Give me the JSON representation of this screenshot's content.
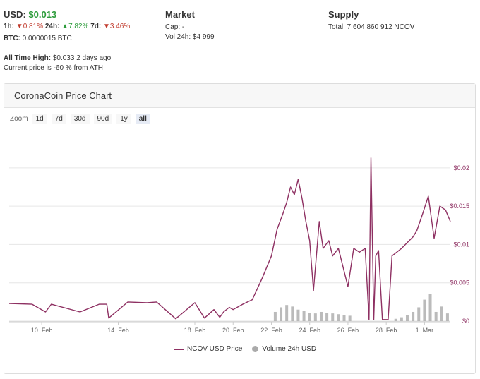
{
  "stats": {
    "usd_label": "USD:",
    "usd_price": "$0.013",
    "h1_label": "1h:",
    "h1_arrow": "▼",
    "h1_value": "0.81%",
    "h24_label": "24h:",
    "h24_arrow": "▲",
    "h24_value": "7.82%",
    "d7_label": "7d:",
    "d7_arrow": "▼",
    "d7_value": "3.46%",
    "btc_label": "BTC:",
    "btc_value": "0.0000015 BTC",
    "ath_label": "All Time High:",
    "ath_value": "$0.033",
    "ath_when": "2 days ago",
    "ath_note": "Current price is -60 % from ATH"
  },
  "market": {
    "title": "Market",
    "cap": "Cap: -",
    "vol": "Vol 24h: $4 999"
  },
  "supply": {
    "title": "Supply",
    "total": "Total: 7 604 860 912 NCOV"
  },
  "panel": {
    "title": "CoronaCoin Price Chart",
    "zoom_label": "Zoom",
    "zoom_options": [
      "1d",
      "7d",
      "30d",
      "90d",
      "1y",
      "all"
    ],
    "zoom_selected": "all"
  },
  "colors": {
    "price_line": "#8e3062",
    "volume_bars": "#aaaaaa",
    "price_up": "#2e9c3c",
    "price_down": "#c0392b"
  },
  "chart_data": {
    "type": "line",
    "title": "",
    "x_labels": [
      "10. Feb",
      "14. Feb",
      "18. Feb",
      "20. Feb",
      "22. Feb",
      "24. Feb",
      "26. Feb",
      "28. Feb",
      "1. Mar"
    ],
    "x_label_days": [
      1,
      5,
      9,
      11,
      13,
      15,
      17,
      19,
      21
    ],
    "y_labels": [
      "$0",
      "$0.005",
      "$0.01",
      "$0.015",
      "$0.02"
    ],
    "y_ticks": [
      0,
      0.005,
      0.01,
      0.015,
      0.02
    ],
    "ylim": [
      0,
      0.0245
    ],
    "xlim": [
      -0.7,
      22.35
    ],
    "grid": true,
    "legend_position": "bottom",
    "series": [
      {
        "name": "NCOV USD Price",
        "type": "line",
        "x": [
          -0.7,
          0.5,
          1.2,
          1.5,
          3.0,
          4.0,
          4.4,
          4.5,
          5.5,
          6.5,
          7.0,
          8.0,
          9.0,
          9.5,
          10.0,
          10.3,
          10.5,
          10.8,
          11.0,
          11.5,
          12.0,
          12.5,
          13.0,
          13.3,
          13.6,
          13.8,
          14.0,
          14.2,
          14.4,
          14.6,
          14.8,
          15.0,
          15.2,
          15.5,
          15.7,
          16.0,
          16.2,
          16.5,
          17.0,
          17.3,
          17.6,
          17.9,
          18.1,
          18.2,
          18.35,
          18.45,
          18.6,
          18.8,
          18.95,
          19.1,
          19.3,
          19.8,
          20.2,
          20.4,
          20.6,
          20.9,
          21.2,
          21.5,
          21.8,
          22.1,
          22.35
        ],
        "y": [
          0.0023,
          0.0022,
          0.0012,
          0.0022,
          0.0012,
          0.0022,
          0.0022,
          0.0004,
          0.0025,
          0.0024,
          0.0025,
          0.0003,
          0.0024,
          0.0004,
          0.0015,
          0.0005,
          0.0012,
          0.0018,
          0.0015,
          0.0022,
          0.0028,
          0.0055,
          0.0085,
          0.012,
          0.014,
          0.0155,
          0.0175,
          0.0165,
          0.0185,
          0.016,
          0.013,
          0.0105,
          0.004,
          0.013,
          0.0095,
          0.0105,
          0.0085,
          0.0095,
          0.0045,
          0.0095,
          0.009,
          0.0095,
          0.0002,
          0.0213,
          0.0002,
          0.0085,
          0.0092,
          0.0002,
          0.0002,
          0.0002,
          0.0085,
          0.0095,
          0.0105,
          0.011,
          0.0118,
          0.014,
          0.0163,
          0.0108,
          0.015,
          0.0145,
          0.013
        ]
      },
      {
        "name": "Volume 24h USD",
        "type": "column",
        "x": [
          13.2,
          13.5,
          13.8,
          14.1,
          14.4,
          14.7,
          15.0,
          15.3,
          15.6,
          15.9,
          16.2,
          16.5,
          16.8,
          17.1,
          19.5,
          19.8,
          20.1,
          20.4,
          20.7,
          21.0,
          21.3,
          21.6,
          21.9,
          22.2
        ],
        "y": [
          0.0012,
          0.0018,
          0.0021,
          0.0019,
          0.0015,
          0.0013,
          0.0011,
          0.001,
          0.0012,
          0.0011,
          0.001,
          0.0009,
          0.0008,
          0.0007,
          0.0003,
          0.0005,
          0.0008,
          0.0012,
          0.0018,
          0.0028,
          0.0035,
          0.0012,
          0.0019,
          0.001
        ]
      }
    ]
  }
}
